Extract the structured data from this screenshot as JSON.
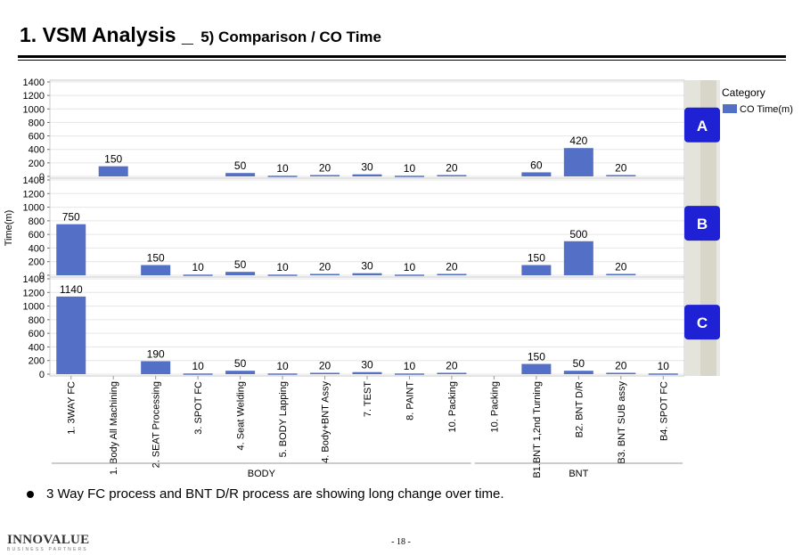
{
  "title": {
    "main": "1. VSM Analysis _",
    "sub": "5) Comparison / CO Time"
  },
  "bullet": "3 Way FC process and BNT D/R process are showing long change over time.",
  "logo": {
    "main": "INNOVALUE",
    "sub": "BUSINESS PARTNERS"
  },
  "page_number": "- 18 -",
  "chart_data": {
    "type": "bar",
    "ylabel": "Time(m)",
    "ylim": [
      0,
      1400
    ],
    "yticks": [
      0,
      200,
      400,
      600,
      800,
      1000,
      1200,
      1400
    ],
    "legend": {
      "title": "Category",
      "entries": [
        "CO Time(m)"
      ],
      "placement": "right"
    },
    "bar_color": "#5470c6",
    "badge_color": "#1f22d4",
    "categories": [
      "1. 3WAY FC",
      "1. Body All Machining",
      "2. SEAT Processing",
      "3. SPOT FC",
      "4. Seat Welding",
      "5. BODY Lapping",
      "4. Body+BNT Assy",
      "7. TEST",
      "8. PAINT",
      "10. Packing",
      "10. Packing",
      "B1.BNT 1,2nd Turning",
      "B2. BNT D/R",
      "B3. BNT SUB assy",
      "B4. SPOT FC"
    ],
    "groups": [
      {
        "name": "BODY",
        "from": 0,
        "to": 9
      },
      {
        "name": "BNT",
        "from": 10,
        "to": 14
      }
    ],
    "series": [
      {
        "panel": "A",
        "values": [
          null,
          150,
          null,
          null,
          50,
          10,
          20,
          30,
          10,
          20,
          null,
          60,
          420,
          20,
          null
        ]
      },
      {
        "panel": "B",
        "values": [
          750,
          null,
          150,
          10,
          50,
          10,
          20,
          30,
          10,
          20,
          null,
          150,
          500,
          20,
          null
        ]
      },
      {
        "panel": "C",
        "values": [
          1140,
          null,
          190,
          10,
          50,
          10,
          20,
          30,
          10,
          20,
          null,
          150,
          50,
          20,
          10
        ]
      }
    ]
  }
}
